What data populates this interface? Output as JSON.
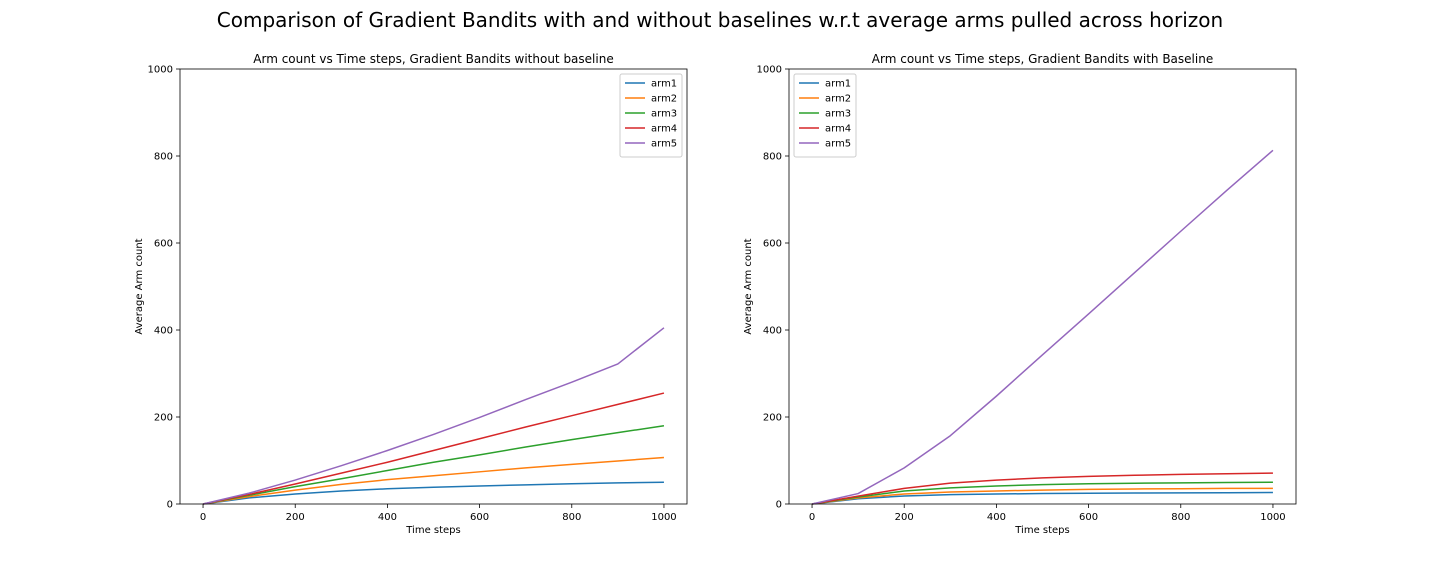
{
  "figure": {
    "suptitle": "Comparison of Gradient Bandits with and without baselines w.r.t average arms pulled across horizon"
  },
  "chart_data": [
    {
      "type": "line",
      "title": "Arm count vs Time steps, Gradient Bandits without baseline",
      "xlabel": "Time steps",
      "ylabel": "Average Arm count",
      "xlim": [
        -50,
        1050
      ],
      "ylim": [
        0,
        1000
      ],
      "xticks": [
        0,
        200,
        400,
        600,
        800,
        1000
      ],
      "yticks": [
        0,
        200,
        400,
        600,
        800,
        1000
      ],
      "legend_position": "upper right",
      "x": [
        0,
        100,
        200,
        300,
        400,
        500,
        600,
        700,
        800,
        900,
        1000
      ],
      "series": [
        {
          "name": "arm1",
          "color": "#1f77b4",
          "values": [
            0,
            14,
            23,
            30,
            35,
            38.5,
            41.5,
            44,
            46.5,
            48.5,
            50
          ]
        },
        {
          "name": "arm2",
          "color": "#ff7f0e",
          "values": [
            0,
            17,
            32,
            45,
            56,
            65,
            74,
            83,
            91,
            99,
            107
          ]
        },
        {
          "name": "arm3",
          "color": "#2ca02c",
          "values": [
            0,
            20,
            40,
            58,
            77,
            96,
            113,
            131,
            148,
            164,
            180
          ]
        },
        {
          "name": "arm4",
          "color": "#d62728",
          "values": [
            0,
            22,
            46,
            71,
            96,
            123,
            150,
            177,
            203,
            229,
            255
          ]
        },
        {
          "name": "arm5",
          "color": "#9467bd",
          "values": [
            0,
            25,
            55,
            88,
            123,
            160,
            199,
            240,
            280,
            322,
            405
          ]
        }
      ]
    },
    {
      "type": "line",
      "title": "Arm count vs Time steps, Gradient Bandits with Baseline",
      "xlabel": "Time steps",
      "ylabel": "Average Arm count",
      "xlim": [
        -50,
        1050
      ],
      "ylim": [
        0,
        1000
      ],
      "xticks": [
        0,
        200,
        400,
        600,
        800,
        1000
      ],
      "yticks": [
        0,
        200,
        400,
        600,
        800,
        1000
      ],
      "legend_position": "upper left",
      "x": [
        0,
        100,
        200,
        300,
        400,
        500,
        600,
        700,
        800,
        900,
        1000
      ],
      "series": [
        {
          "name": "arm1",
          "color": "#1f77b4",
          "values": [
            0,
            12,
            18.5,
            21.5,
            23,
            24,
            24.8,
            25.3,
            25.7,
            26,
            26.5
          ]
        },
        {
          "name": "arm2",
          "color": "#ff7f0e",
          "values": [
            0,
            14,
            23,
            27.5,
            30,
            32,
            33.5,
            34.5,
            35.2,
            35.8,
            36
          ]
        },
        {
          "name": "arm3",
          "color": "#2ca02c",
          "values": [
            0,
            16,
            30,
            37,
            41.5,
            44.5,
            46.5,
            47.8,
            48.5,
            49.3,
            50
          ]
        },
        {
          "name": "arm4",
          "color": "#d62728",
          "values": [
            0,
            18,
            36,
            48,
            55,
            60,
            63.5,
            66,
            68,
            69.5,
            71
          ]
        },
        {
          "name": "arm5",
          "color": "#9467bd",
          "values": [
            0,
            24,
            83,
            157,
            248,
            343,
            437,
            532,
            627,
            721,
            813
          ]
        }
      ]
    }
  ]
}
